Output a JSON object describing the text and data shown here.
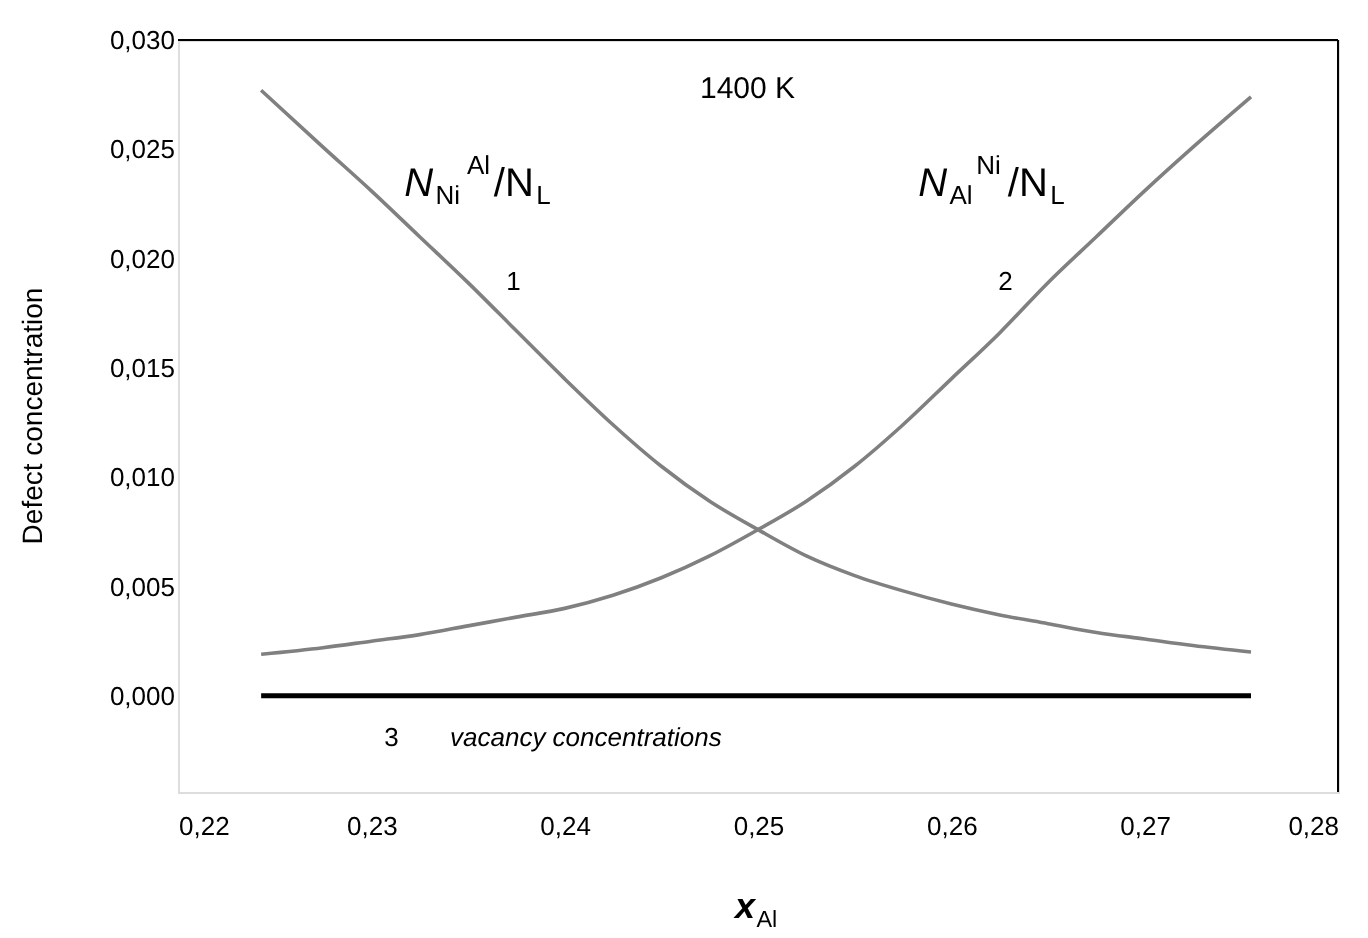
{
  "chart_data": {
    "type": "line",
    "xlabel": "x$_{Al}$",
    "ylabel": "Defect concentration",
    "xlim": [
      0.22,
      0.28
    ],
    "xticks": [
      {
        "value": 0.22,
        "label": "0,22"
      },
      {
        "value": 0.23,
        "label": "0,23"
      },
      {
        "value": 0.24,
        "label": "0,24"
      },
      {
        "value": 0.25,
        "label": "0,25"
      },
      {
        "value": 0.26,
        "label": "0,26"
      },
      {
        "value": 0.27,
        "label": "0,27"
      },
      {
        "value": 0.28,
        "label": "0,28"
      }
    ],
    "ylim": [
      -0.0044,
      0.03
    ],
    "yticks": [
      {
        "value": 0.0,
        "label": "0,000"
      },
      {
        "value": 0.005,
        "label": "0,005"
      },
      {
        "value": 0.01,
        "label": "0,010"
      },
      {
        "value": 0.015,
        "label": "0,015"
      },
      {
        "value": 0.02,
        "label": "0,020"
      },
      {
        "value": 0.025,
        "label": "0,025"
      },
      {
        "value": 0.03,
        "label": "0,030"
      }
    ],
    "grid": false,
    "marker": "none",
    "line_style": "solid",
    "series": [
      {
        "color": "#808080",
        "x": [
          0.2243,
          0.2275,
          0.23,
          0.2325,
          0.235,
          0.2375,
          0.24,
          0.2425,
          0.245,
          0.2475,
          0.25,
          0.2525,
          0.255,
          0.2575,
          0.26,
          0.2625,
          0.265,
          0.2675,
          0.27,
          0.2725,
          0.2755
        ],
        "values": [
          0.0277,
          0.0251,
          0.0231,
          0.021,
          0.0189,
          0.0167,
          0.0145,
          0.0124,
          0.0105,
          0.0089,
          0.0076,
          0.0064,
          0.0055,
          0.0048,
          0.0042,
          0.0037,
          0.0033,
          0.0029,
          0.0026,
          0.0023,
          0.002
        ]
      },
      {
        "color": "#808080",
        "x": [
          0.2243,
          0.2275,
          0.23,
          0.2325,
          0.235,
          0.2375,
          0.24,
          0.2425,
          0.245,
          0.2475,
          0.25,
          0.2525,
          0.255,
          0.2575,
          0.26,
          0.2625,
          0.265,
          0.2675,
          0.27,
          0.2725,
          0.2755
        ],
        "values": [
          0.0019,
          0.0022,
          0.0025,
          0.0028,
          0.0032,
          0.0036,
          0.004,
          0.0046,
          0.0054,
          0.0064,
          0.0076,
          0.0089,
          0.0105,
          0.0124,
          0.0145,
          0.0166,
          0.0189,
          0.021,
          0.0231,
          0.0251,
          0.0274
        ]
      },
      {
        "color": "#000000",
        "x": [
          0.2243,
          0.2755
        ],
        "values": [
          0.0,
          0.0
        ]
      }
    ],
    "annotations": [
      "1400 K",
      "N$_{Ni}$$^{Al}$/N$_{L}$",
      "N$_{Al}$$^{Ni}$/N$_{L}$",
      "1",
      "2",
      "3",
      "vacancy concentrations"
    ]
  }
}
